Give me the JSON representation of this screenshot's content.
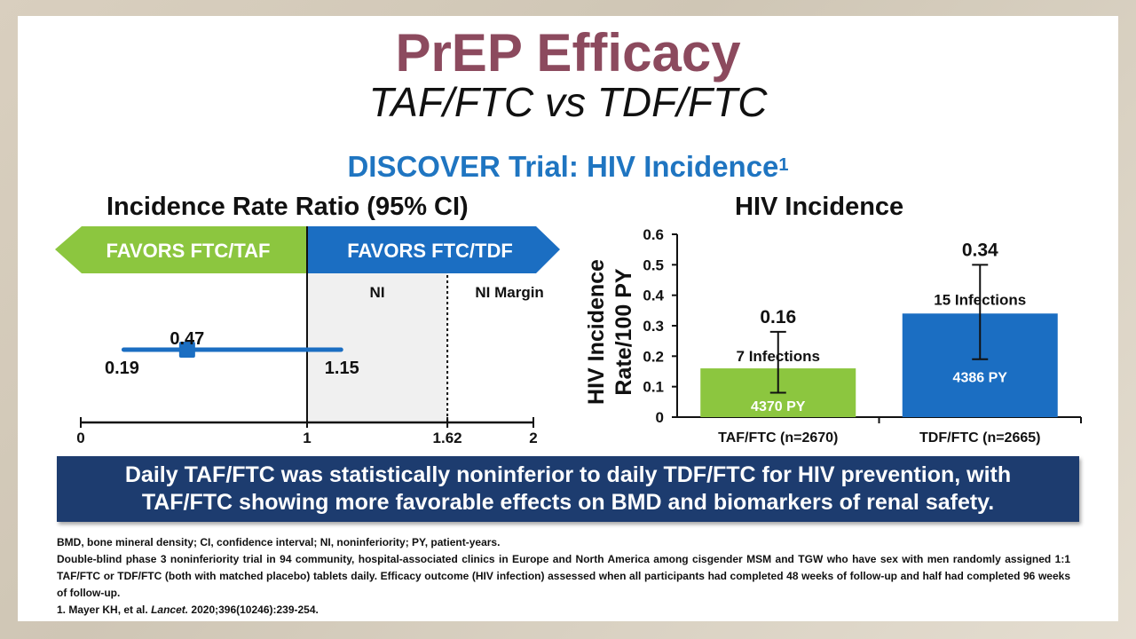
{
  "slide": {
    "title": "PrEP Efficacy",
    "subtitle": "TAF/FTC vs TDF/FTC",
    "trial_heading": "DISCOVER Trial: HIV Incidence",
    "trial_superscript": "1"
  },
  "colors": {
    "title": "#8c4a5e",
    "heading_blue": "#1f75c1",
    "green": "#8cc63f",
    "blue": "#1b6ec2",
    "ci_blue": "#1b6ec2",
    "banner_navy": "#1d3c6f"
  },
  "chart_data": [
    {
      "type": "forest",
      "title": "Incidence Rate Ratio (95% CI)",
      "favors_left": "FAVORS FTC/TAF",
      "favors_right": "FAVORS FTC/TDF",
      "region_label_ni": "NI",
      "region_label_margin": "NI Margin",
      "estimate": 0.47,
      "ci_low": 0.19,
      "ci_high": 1.15,
      "estimate_label": "0.47",
      "ci_low_label": "0.19",
      "ci_high_label": "1.15",
      "reference_line": 1,
      "ni_margin": 1.62,
      "xlim": [
        0,
        2
      ],
      "ticks": [
        {
          "value": 0,
          "label": "0"
        },
        {
          "value": 1,
          "label": "1"
        },
        {
          "value": 1.62,
          "label": "1.62"
        },
        {
          "value": 2,
          "label": "2"
        }
      ]
    },
    {
      "type": "bar",
      "title": "HIV Incidence",
      "ylabel_line1": "HIV Incidence",
      "ylabel_line2": "Rate/100 PY",
      "ylim": [
        0,
        0.6
      ],
      "yticks": [
        "0",
        "0.1",
        "0.2",
        "0.3",
        "0.4",
        "0.5",
        "0.6"
      ],
      "categories": [
        "TAF/FTC (n=2670)",
        "TDF/FTC (n=2665)"
      ],
      "values": [
        0.16,
        0.34
      ],
      "value_labels": [
        "0.16",
        "0.34"
      ],
      "ci_low": [
        0.08,
        0.19
      ],
      "ci_high": [
        0.28,
        0.5
      ],
      "infections": [
        "7 Infections",
        "15 Infections"
      ],
      "person_years": [
        "4370 PY",
        "4386 PY"
      ]
    }
  ],
  "conclusion": {
    "line1": "Daily TAF/FTC was statistically noninferior to daily TDF/FTC for HIV prevention, with",
    "line2": "TAF/FTC showing more favorable effects on BMD and biomarkers of renal safety."
  },
  "footnotes": {
    "abbreviations": "BMD, bone mineral density; CI, confidence interval; NI, noninferiority; PY, patient-years.",
    "study": "Double-blind phase 3 noninferiority trial in 94 community, hospital-associated clinics in Europe and North America among cisgender MSM and TGW who have sex with men randomly assigned 1:1 TAF/FTC or TDF/FTC (both with matched placebo) tablets daily. Efficacy outcome (HIV infection) assessed when all participants had completed 48 weeks of follow-up and half had completed 96 weeks of follow-up.",
    "ref_authors": "1. Mayer KH, et al.",
    "ref_journal": "Lancet.",
    "ref_citation": "2020;396(10246):239-254."
  }
}
